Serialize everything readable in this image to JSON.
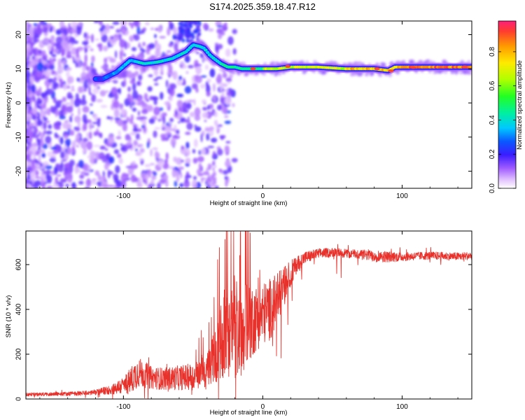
{
  "chart_data": [
    {
      "type": "heatmap",
      "title": "S174.2025.359.18.47.R12",
      "xlabel": "Height of straight line (km)",
      "ylabel": "Frequency (Hz)",
      "xlim": [
        -170,
        150
      ],
      "ylim": [
        -25,
        24
      ],
      "xticks": [
        -100,
        0,
        100
      ],
      "yticks": [
        -20,
        -10,
        0,
        10,
        20
      ],
      "colorbar": {
        "label": "Normalized spectral amplitude",
        "range": [
          0,
          0.98
        ],
        "ticks": [
          0.0,
          0.2,
          0.4,
          0.6,
          0.8
        ]
      },
      "ridge": {
        "name": "dominant frequency track",
        "x": [
          -115,
          -105,
          -95,
          -85,
          -75,
          -65,
          -55,
          -50,
          -45,
          -42,
          -38,
          -35,
          -30,
          -25,
          -20,
          -15,
          -10,
          -5,
          0,
          10,
          20,
          40,
          60,
          80,
          90,
          95,
          110,
          130,
          150
        ],
        "y": [
          7,
          9,
          12.5,
          11.5,
          12,
          13,
          15,
          17,
          16.5,
          16,
          14,
          13,
          11.5,
          10.5,
          10.5,
          10,
          10,
          10,
          10,
          10,
          10.5,
          10.5,
          10,
          10,
          9.5,
          10.5,
          10.5,
          10.5,
          10.5
        ]
      }
    },
    {
      "type": "line",
      "title": "",
      "xlabel": "Height of straight line (km)",
      "ylabel": "SNR (10 * v/v)",
      "xlim": [
        -170,
        150
      ],
      "ylim": [
        0,
        750
      ],
      "xticks": [
        -100,
        0,
        100
      ],
      "yticks": [
        0,
        200,
        400,
        600
      ],
      "series": [
        {
          "name": "SNR",
          "color": "#e8312b",
          "x": [
            -170,
            -150,
            -130,
            -120,
            -110,
            -100,
            -95,
            -90,
            -85,
            -80,
            -70,
            -60,
            -50,
            -40,
            -35,
            -30,
            -25,
            -20,
            -15,
            -10,
            -5,
            0,
            5,
            10,
            15,
            20,
            25,
            30,
            35,
            40,
            50,
            60,
            70,
            80,
            90,
            100,
            110,
            120,
            130,
            140,
            150
          ],
          "values": [
            20,
            22,
            25,
            30,
            40,
            60,
            80,
            120,
            110,
            95,
            90,
            95,
            100,
            120,
            180,
            260,
            320,
            330,
            300,
            340,
            360,
            380,
            400,
            440,
            500,
            560,
            600,
            630,
            640,
            650,
            655,
            650,
            645,
            640,
            635,
            635,
            638,
            640,
            638,
            636,
            640
          ],
          "amplitude": [
            8,
            8,
            10,
            12,
            20,
            40,
            60,
            70,
            60,
            50,
            50,
            55,
            60,
            80,
            120,
            180,
            220,
            240,
            200,
            180,
            150,
            140,
            140,
            120,
            90,
            60,
            40,
            30,
            25,
            22,
            20,
            20,
            22,
            28,
            25,
            20,
            18,
            18,
            18,
            18,
            18
          ]
        }
      ]
    }
  ]
}
